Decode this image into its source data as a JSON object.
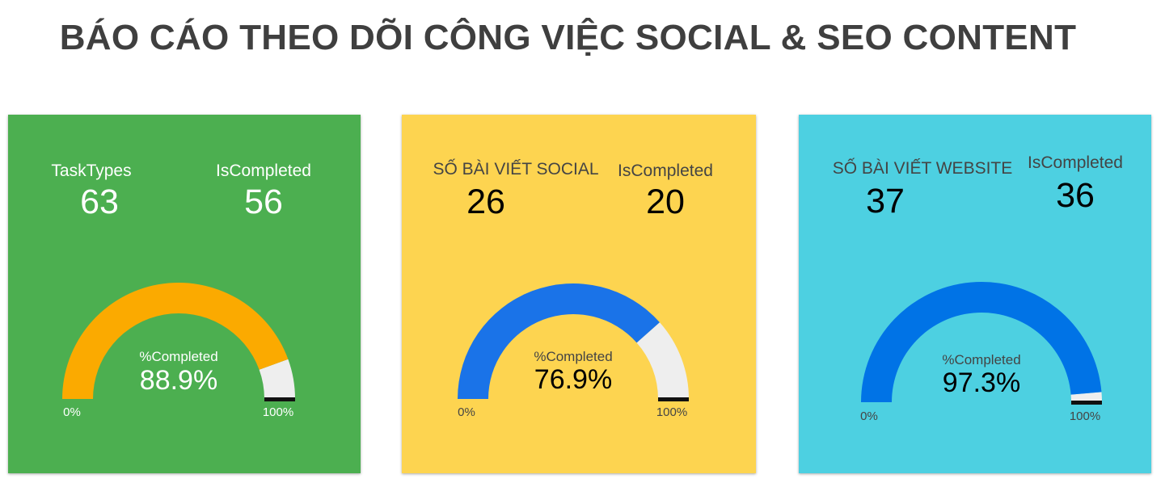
{
  "page": {
    "title": "BÁO CÁO THEO DÕI CÔNG VIỆC SOCIAL & SEO CONTENT"
  },
  "chart_data": [
    {
      "type": "gauge",
      "metrics": [
        {
          "label": "TaskTypes",
          "value": "63"
        },
        {
          "label": "IsCompleted",
          "value": "56"
        }
      ],
      "gauge": {
        "label": "%Completed",
        "value": 88.9,
        "value_text": "88.9%",
        "min_label": "0%",
        "max_label": "100%",
        "min": 0,
        "max": 100
      },
      "colors": {
        "background": "#4caf50",
        "fill": "#fbaa00",
        "track": "#eeeeee",
        "text": "#ffffff",
        "target": "#111111"
      }
    },
    {
      "type": "gauge",
      "metrics": [
        {
          "label": "SỐ BÀI VIẾT SOCIAL",
          "value": "26"
        },
        {
          "label": "IsCompleted",
          "value": "20"
        }
      ],
      "gauge": {
        "label": "%Completed",
        "value": 76.9,
        "value_text": "76.9%",
        "min_label": "0%",
        "max_label": "100%",
        "min": 0,
        "max": 100
      },
      "colors": {
        "background": "#fdd450",
        "fill": "#1a73e8",
        "track": "#eeeeee",
        "text": "#000000",
        "label_text": "#444444",
        "target": "#111111"
      }
    },
    {
      "type": "gauge",
      "metrics": [
        {
          "label": "SỐ BÀI VIẾT WEBSITE",
          "value": "37"
        },
        {
          "label": "IsCompleted",
          "value": "36"
        }
      ],
      "gauge": {
        "label": "%Completed",
        "value": 97.3,
        "value_text": "97.3%",
        "min_label": "0%",
        "max_label": "100%",
        "min": 0,
        "max": 100
      },
      "colors": {
        "background": "#4dd0e1",
        "fill": "#0073e6",
        "track": "#eeeeee",
        "text": "#000000",
        "label_text": "#444444",
        "target": "#111111"
      }
    }
  ]
}
